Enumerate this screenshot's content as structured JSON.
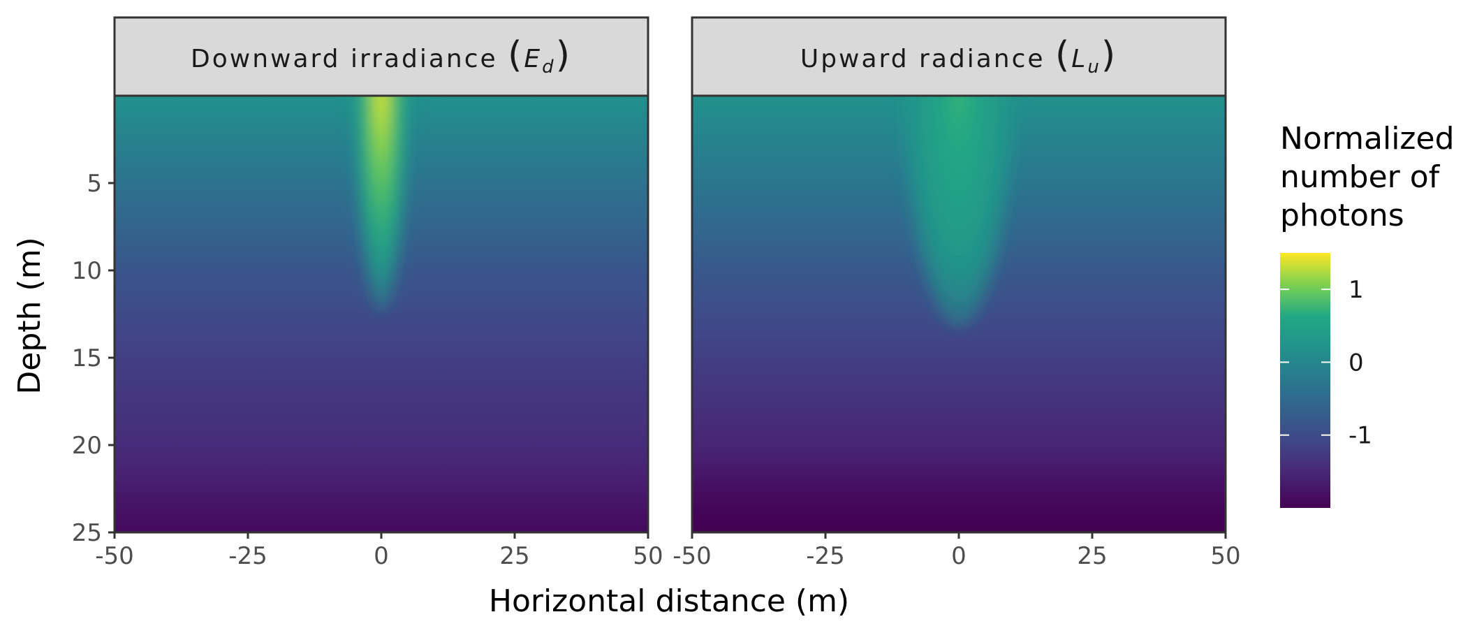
{
  "chart_data": {
    "type": "heatmap",
    "panels": [
      {
        "title_text": "Downward irradiance",
        "title_symbol": "E",
        "title_subscript": "d",
        "background_values": {
          "depth": [
            0,
            5,
            10,
            15,
            20,
            25
          ],
          "value": [
            0.18,
            -0.35,
            -0.85,
            -1.2,
            -1.45,
            -1.9
          ]
        },
        "beam": {
          "center_x": 0,
          "peak_value": 1.5,
          "width": 5.5,
          "depth_scale": 14
        }
      },
      {
        "title_text": "Upward radiance",
        "title_symbol": "L",
        "title_subscript": "u",
        "background_values": {
          "depth": [
            0,
            5,
            10,
            15,
            20,
            25
          ],
          "value": [
            0.18,
            -0.3,
            -0.8,
            -1.2,
            -1.55,
            -2.1
          ]
        },
        "beam": {
          "center_x": 0,
          "peak_value": 0.75,
          "width": 11,
          "depth_scale": 15
        }
      }
    ],
    "x": {
      "label": "Horizontal distance (m)",
      "range": [
        -50,
        50
      ],
      "ticks": [
        "-50",
        "-25",
        "0",
        "25",
        "50"
      ]
    },
    "y": {
      "label": "Depth (m)",
      "range": [
        0,
        25
      ],
      "reversed": true,
      "ticks": [
        "5",
        "10",
        "15",
        "20",
        "25"
      ]
    },
    "legend": {
      "title_lines": [
        "Normalized",
        "number of",
        "photons"
      ],
      "position": "right",
      "ticks": [
        "1",
        "0",
        "-1"
      ],
      "range": [
        -2,
        1.5
      ]
    },
    "colormap": "viridis"
  }
}
